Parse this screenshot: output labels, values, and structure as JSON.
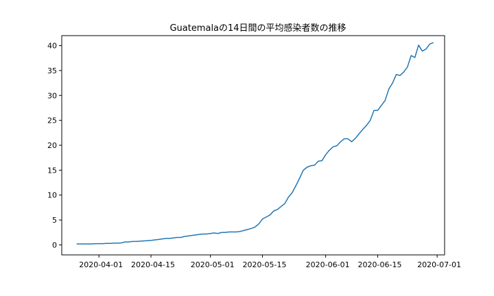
{
  "chart_data": {
    "type": "line",
    "title": "Guatemalaの14日間の平均感染者数の推移",
    "xlabel": "",
    "ylabel": "",
    "x_range": [
      "2020-03-22",
      "2020-07-03"
    ],
    "ylim": [
      -2,
      42
    ],
    "yticks": [
      0,
      5,
      10,
      15,
      20,
      25,
      30,
      35,
      40
    ],
    "xticks": [
      {
        "date": "2020-04-01",
        "label": "2020-04-01"
      },
      {
        "date": "2020-04-15",
        "label": "2020-04-15"
      },
      {
        "date": "2020-05-01",
        "label": "2020-05-01"
      },
      {
        "date": "2020-05-15",
        "label": "2020-05-15"
      },
      {
        "date": "2020-06-01",
        "label": "2020-06-01"
      },
      {
        "date": "2020-06-15",
        "label": "2020-06-15"
      },
      {
        "date": "2020-07-01",
        "label": "2020-07-01"
      }
    ],
    "grid": false,
    "line_color": "#1f77b4",
    "x": [
      "2020-03-26",
      "2020-03-27",
      "2020-03-28",
      "2020-03-29",
      "2020-03-30",
      "2020-03-31",
      "2020-04-01",
      "2020-04-02",
      "2020-04-03",
      "2020-04-04",
      "2020-04-05",
      "2020-04-06",
      "2020-04-07",
      "2020-04-08",
      "2020-04-09",
      "2020-04-10",
      "2020-04-11",
      "2020-04-12",
      "2020-04-13",
      "2020-04-14",
      "2020-04-15",
      "2020-04-16",
      "2020-04-17",
      "2020-04-18",
      "2020-04-19",
      "2020-04-20",
      "2020-04-21",
      "2020-04-22",
      "2020-04-23",
      "2020-04-24",
      "2020-04-25",
      "2020-04-26",
      "2020-04-27",
      "2020-04-28",
      "2020-04-29",
      "2020-04-30",
      "2020-05-01",
      "2020-05-02",
      "2020-05-03",
      "2020-05-04",
      "2020-05-05",
      "2020-05-06",
      "2020-05-07",
      "2020-05-08",
      "2020-05-09",
      "2020-05-10",
      "2020-05-11",
      "2020-05-12",
      "2020-05-13",
      "2020-05-14",
      "2020-05-15",
      "2020-05-16",
      "2020-05-17",
      "2020-05-18",
      "2020-05-19",
      "2020-05-20",
      "2020-05-21",
      "2020-05-22",
      "2020-05-23",
      "2020-05-24",
      "2020-05-25",
      "2020-05-26",
      "2020-05-27",
      "2020-05-28",
      "2020-05-29",
      "2020-05-30",
      "2020-05-31",
      "2020-06-01",
      "2020-06-02",
      "2020-06-03",
      "2020-06-04",
      "2020-06-05",
      "2020-06-06",
      "2020-06-07",
      "2020-06-08",
      "2020-06-09",
      "2020-06-10",
      "2020-06-11",
      "2020-06-12",
      "2020-06-13",
      "2020-06-14",
      "2020-06-15",
      "2020-06-16",
      "2020-06-17",
      "2020-06-18",
      "2020-06-19",
      "2020-06-20",
      "2020-06-21",
      "2020-06-22",
      "2020-06-23",
      "2020-06-24",
      "2020-06-25",
      "2020-06-26",
      "2020-06-27",
      "2020-06-28",
      "2020-06-29",
      "2020-06-30"
    ],
    "series": [
      {
        "name": "",
        "values": [
          0.2,
          0.2,
          0.2,
          0.2,
          0.2,
          0.25,
          0.25,
          0.25,
          0.3,
          0.3,
          0.35,
          0.35,
          0.4,
          0.6,
          0.6,
          0.7,
          0.7,
          0.75,
          0.8,
          0.85,
          0.9,
          1.0,
          1.1,
          1.2,
          1.3,
          1.3,
          1.4,
          1.5,
          1.5,
          1.7,
          1.8,
          1.9,
          2.0,
          2.1,
          2.2,
          2.2,
          2.3,
          2.4,
          2.3,
          2.5,
          2.5,
          2.6,
          2.6,
          2.6,
          2.7,
          2.9,
          3.1,
          3.3,
          3.6,
          4.2,
          5.2,
          5.6,
          6.0,
          6.8,
          7.1,
          7.7,
          8.3,
          9.6,
          10.5,
          11.9,
          13.4,
          15.0,
          15.6,
          15.9,
          16.0,
          16.8,
          16.9,
          18.1,
          19.0,
          19.7,
          19.9,
          20.7,
          21.3,
          21.3,
          20.7,
          21.4,
          22.3,
          23.2,
          24.0,
          25.0,
          27.0,
          27.0,
          28.0,
          29.0,
          31.3,
          32.5,
          34.2,
          34.0,
          34.7,
          35.7,
          38.0,
          37.6,
          40.1,
          38.9,
          39.3,
          40.3,
          40.6
        ]
      }
    ]
  }
}
